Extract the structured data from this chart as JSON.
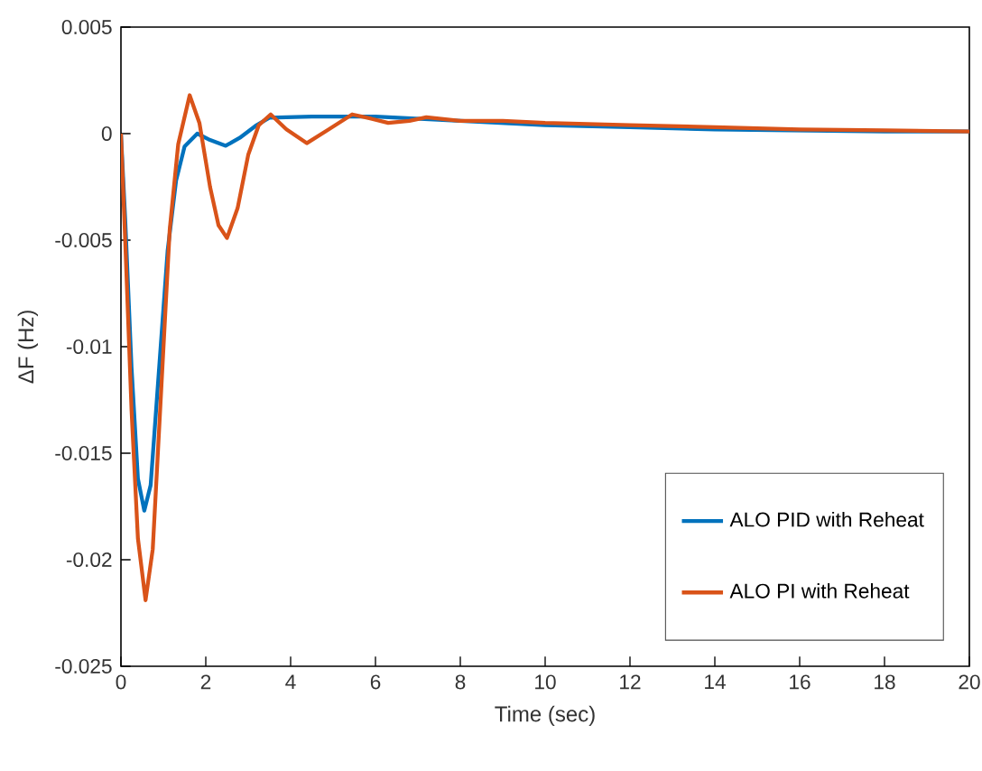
{
  "chart_data": {
    "type": "line",
    "xlabel": "Time (sec)",
    "ylabel": "ΔF (Hz)",
    "xlim": [
      0,
      20
    ],
    "ylim": [
      -0.025,
      0.005
    ],
    "xticks": [
      0,
      2,
      4,
      6,
      8,
      10,
      12,
      14,
      16,
      18,
      20
    ],
    "yticks": [
      -0.025,
      -0.02,
      -0.015,
      -0.01,
      -0.005,
      0,
      0.005
    ],
    "grid": false,
    "legend": "bottom right",
    "marker": "none",
    "line_style": "solid",
    "series": [
      {
        "name": "ALO PID with Reheat",
        "color": "#0072bd",
        "x": [
          0,
          0.1,
          0.25,
          0.4,
          0.55,
          0.7,
          0.9,
          1.1,
          1.3,
          1.5,
          1.8,
          2.1,
          2.47,
          2.8,
          3.2,
          3.5,
          4.5,
          6,
          8,
          10,
          12,
          14,
          16,
          18,
          20
        ],
        "values": [
          0,
          -0.004,
          -0.011,
          -0.0162,
          -0.0177,
          -0.0165,
          -0.011,
          -0.0055,
          -0.0022,
          -0.0006,
          0,
          -0.0003,
          -0.00057,
          -0.0002,
          0.0004,
          0.00075,
          0.0008,
          0.0008,
          0.0006,
          0.0004,
          0.0003,
          0.0002,
          0.00015,
          0.0001,
          0.0001
        ]
      },
      {
        "name": "ALO PI with Reheat",
        "color": "#d95319",
        "x": [
          0,
          0.1,
          0.25,
          0.4,
          0.58,
          0.75,
          0.95,
          1.15,
          1.35,
          1.62,
          1.85,
          2.1,
          2.3,
          2.5,
          2.75,
          3.0,
          3.25,
          3.53,
          3.9,
          4.38,
          4.9,
          5.45,
          5.9,
          6.3,
          6.8,
          7.2,
          8,
          9,
          10,
          12,
          14,
          16,
          18,
          20
        ],
        "values": [
          0,
          -0.005,
          -0.013,
          -0.019,
          -0.0219,
          -0.0195,
          -0.012,
          -0.0045,
          -0.0005,
          0.0018,
          0.0005,
          -0.0025,
          -0.0043,
          -0.0049,
          -0.0035,
          -0.001,
          0.0004,
          0.0009,
          0.0002,
          -0.00045,
          0.0002,
          0.0009,
          0.0007,
          0.0005,
          0.0006,
          0.00077,
          0.0006,
          0.0006,
          0.0005,
          0.0004,
          0.0003,
          0.0002,
          0.00015,
          0.0001
        ]
      }
    ]
  }
}
